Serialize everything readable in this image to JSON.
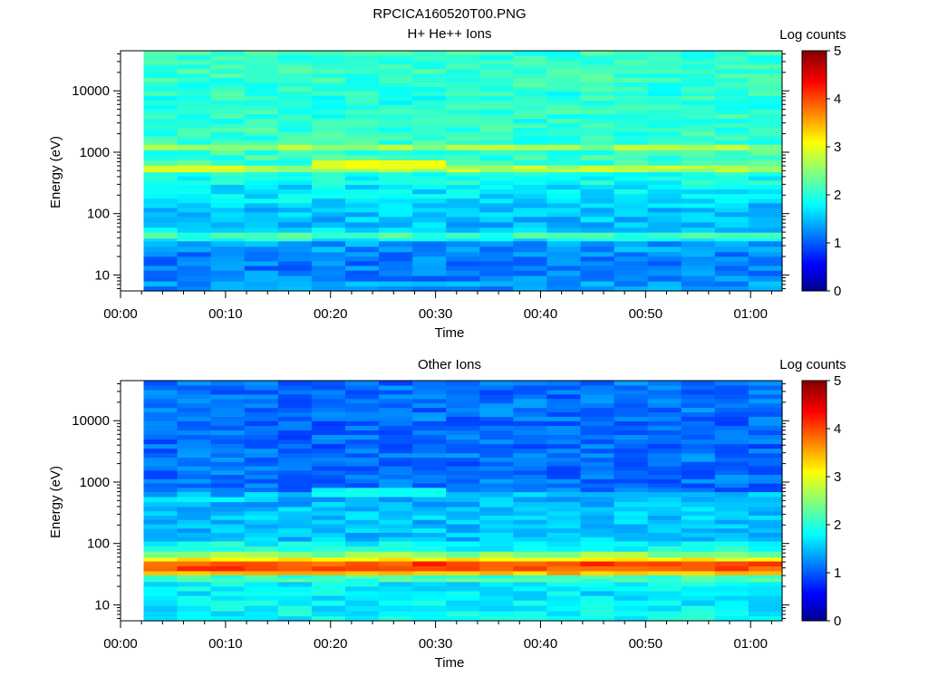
{
  "figure_title": "RPCICA160520T00.PNG",
  "colormap_note_colors": [
    "#00008f",
    "#0000ff",
    "#00ffff",
    "#ffff00",
    "#ff0000",
    "#800000"
  ],
  "chart_data": [
    {
      "type": "heatmap",
      "title": "H+ He++ Ions",
      "xlabel": "Time",
      "ylabel": "Energy (eV)",
      "colorbar_label": "Log counts",
      "colorbar_ticks": [
        "0",
        "1",
        "2",
        "3",
        "4",
        "5"
      ],
      "clim": [
        0,
        5
      ],
      "y_scale": "log",
      "ylim": [
        5.5,
        45000
      ],
      "y_ticks": [
        "10",
        "100",
        "1000",
        "10000"
      ],
      "x_ticks": [
        "00:00",
        "00:10",
        "00:20",
        "00:30",
        "00:40",
        "00:50",
        "01:00"
      ],
      "xlim_minutes": [
        0,
        63
      ],
      "data_start_minutes": 2.2,
      "time_bins": 19,
      "bands": [
        {
          "emin": 5.5,
          "emax": 8,
          "value": 1.3
        },
        {
          "emin": 8,
          "emax": 12,
          "value": 1.2
        },
        {
          "emin": 12,
          "emax": 17,
          "value": 1.15
        },
        {
          "emin": 17,
          "emax": 24,
          "value": 1.2
        },
        {
          "emin": 24,
          "emax": 36,
          "value": 1.3
        },
        {
          "emin": 36,
          "emax": 40,
          "value": 1.8
        },
        {
          "emin": 40,
          "emax": 50,
          "value": 2.1
        },
        {
          "emin": 50,
          "emax": 60,
          "value": 1.6
        },
        {
          "emin": 60,
          "emax": 90,
          "value": 1.5
        },
        {
          "emin": 90,
          "emax": 150,
          "value": 1.55
        },
        {
          "emin": 150,
          "emax": 300,
          "value": 1.7
        },
        {
          "emin": 300,
          "emax": 480,
          "value": 1.9
        },
        {
          "emin": 480,
          "emax": 620,
          "value": 2.7
        },
        {
          "emin": 620,
          "emax": 1100,
          "value": 2.1
        },
        {
          "emin": 1100,
          "emax": 1350,
          "value": 2.6
        },
        {
          "emin": 1350,
          "emax": 3000,
          "value": 2.05
        },
        {
          "emin": 3000,
          "emax": 10000,
          "value": 2.0
        },
        {
          "emin": 10000,
          "emax": 45000,
          "value": 2.05
        }
      ],
      "features": [
        {
          "emin": 560,
          "emax": 800,
          "tmin": 18.5,
          "tmax": 30.5,
          "value": 3.0
        },
        {
          "emin": 480,
          "emax": 620,
          "tmin": 2.2,
          "tmax": 12.0,
          "value": 2.9
        }
      ]
    },
    {
      "type": "heatmap",
      "title": "Other Ions",
      "xlabel": "Time",
      "ylabel": "Energy (eV)",
      "colorbar_label": "Log counts",
      "colorbar_ticks": [
        "0",
        "1",
        "2",
        "3",
        "4",
        "5"
      ],
      "clim": [
        0,
        5
      ],
      "y_scale": "log",
      "ylim": [
        5.5,
        45000
      ],
      "y_ticks": [
        "10",
        "100",
        "1000",
        "10000"
      ],
      "x_ticks": [
        "00:00",
        "00:10",
        "00:20",
        "00:30",
        "00:40",
        "00:50",
        "01:00"
      ],
      "xlim_minutes": [
        0,
        63
      ],
      "data_start_minutes": 2.2,
      "time_bins": 19,
      "bands": [
        {
          "emin": 5.5,
          "emax": 8,
          "value": 1.8
        },
        {
          "emin": 8,
          "emax": 12,
          "value": 1.75
        },
        {
          "emin": 12,
          "emax": 17,
          "value": 1.7
        },
        {
          "emin": 17,
          "emax": 24,
          "value": 1.75
        },
        {
          "emin": 24,
          "emax": 31,
          "value": 2.1
        },
        {
          "emin": 31,
          "emax": 36,
          "value": 3.4
        },
        {
          "emin": 36,
          "emax": 52,
          "value": 4.0
        },
        {
          "emin": 52,
          "emax": 60,
          "value": 3.1
        },
        {
          "emin": 60,
          "emax": 75,
          "value": 2.5
        },
        {
          "emin": 75,
          "emax": 110,
          "value": 1.85
        },
        {
          "emin": 110,
          "emax": 400,
          "value": 1.5
        },
        {
          "emin": 400,
          "emax": 700,
          "value": 1.45
        },
        {
          "emin": 700,
          "emax": 3000,
          "value": 1.1
        },
        {
          "emin": 3000,
          "emax": 10000,
          "value": 1.05
        },
        {
          "emin": 10000,
          "emax": 45000,
          "value": 1.1
        }
      ],
      "features": [
        {
          "emin": 560,
          "emax": 800,
          "tmin": 18.5,
          "tmax": 30.5,
          "value": 1.8
        },
        {
          "emin": 480,
          "emax": 620,
          "tmin": 2.2,
          "tmax": 12.0,
          "value": 1.75
        }
      ]
    }
  ]
}
